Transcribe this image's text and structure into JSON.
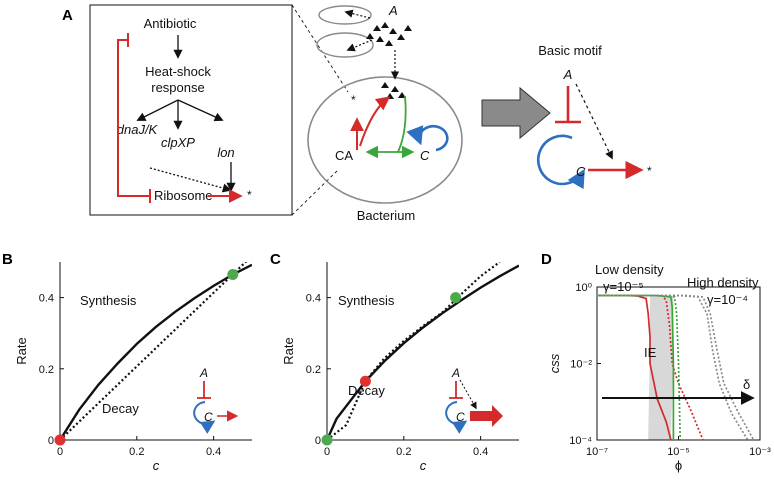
{
  "panels": {
    "A": {
      "letter": "A",
      "pathway": {
        "antibiotic": "Antibiotic",
        "hsr_line1": "Heat-shock",
        "hsr_line2": "response",
        "dnaJK": "dnaJ/K",
        "clpXP": "clpXP",
        "lon": "lon",
        "ribosome": "Ribosome",
        "star": "*"
      },
      "cell": {
        "A": "A",
        "CA": "CA",
        "C": "C",
        "star": "*",
        "caption": "Bacterium"
      },
      "motif": {
        "title": "Basic motif",
        "A": "A",
        "C": "C",
        "star": "*"
      }
    },
    "B": {
      "letter": "B",
      "synthesis": "Synthesis",
      "decay": "Decay",
      "A": "A",
      "C": "C"
    },
    "C": {
      "letter": "C",
      "synthesis": "Synthesis",
      "decay": "Decay",
      "A": "A",
      "C": "C"
    },
    "D": {
      "letter": "D",
      "low_density": "Low density",
      "high_density": "High density",
      "gamma_low": "γ=10⁻⁵",
      "gamma_high": "γ=10⁻⁴",
      "ie": "IE",
      "delta": "δ"
    }
  },
  "colors": {
    "red": "#d42a2a",
    "green": "#3aa63a",
    "blue": "#2f6fc0",
    "grey": "#8a8a8a",
    "point_red": "#e03030",
    "point_green": "#4caa4c",
    "ie_fill": "#d8d8d8"
  },
  "chart_data": [
    {
      "panel": "B",
      "type": "line",
      "xlabel": "c",
      "ylabel": "Rate",
      "xlim": [
        0,
        0.5
      ],
      "ylim": [
        0,
        0.5
      ],
      "xticks": [
        "0",
        "0.2",
        "0.4"
      ],
      "yticks": [
        "0",
        "0.2",
        "0.4"
      ],
      "series": [
        {
          "name": "Synthesis",
          "style": "solid",
          "x": [
            0,
            0.05,
            0.1,
            0.15,
            0.2,
            0.25,
            0.3,
            0.35,
            0.4,
            0.45,
            0.5
          ],
          "y": [
            0,
            0.085,
            0.155,
            0.215,
            0.27,
            0.318,
            0.36,
            0.398,
            0.433,
            0.465,
            0.492
          ]
        },
        {
          "name": "Decay",
          "style": "dotted",
          "x": [
            0,
            0.5
          ],
          "y": [
            0,
            0.517
          ]
        }
      ],
      "points": [
        {
          "x": 0,
          "y": 0,
          "color": "red"
        },
        {
          "x": 0.45,
          "y": 0.465,
          "color": "green"
        }
      ]
    },
    {
      "panel": "C",
      "type": "line",
      "xlabel": "c",
      "ylabel": "Rate",
      "xlim": [
        0,
        0.5
      ],
      "ylim": [
        0,
        0.5
      ],
      "xticks": [
        "0",
        "0.2",
        "0.4"
      ],
      "yticks": [
        "0",
        "0.2",
        "0.4"
      ],
      "series": [
        {
          "name": "Synthesis",
          "style": "solid",
          "x": [
            0,
            0.025,
            0.05,
            0.1,
            0.15,
            0.2,
            0.25,
            0.3,
            0.35,
            0.4,
            0.45,
            0.5
          ],
          "y": [
            0,
            0.06,
            0.095,
            0.165,
            0.222,
            0.272,
            0.316,
            0.356,
            0.393,
            0.428,
            0.46,
            0.49
          ]
        },
        {
          "name": "Decay",
          "style": "dotted",
          "x": [
            0,
            0.05,
            0.1,
            0.15,
            0.2,
            0.25,
            0.3,
            0.35,
            0.4,
            0.45
          ],
          "y": [
            0,
            0.042,
            0.166,
            0.23,
            0.278,
            0.32,
            0.358,
            0.41,
            0.46,
            0.5
          ]
        }
      ],
      "points": [
        {
          "x": 0,
          "y": 0,
          "color": "green"
        },
        {
          "x": 0.1,
          "y": 0.165,
          "color": "red"
        },
        {
          "x": 0.335,
          "y": 0.4,
          "color": "green"
        }
      ]
    },
    {
      "panel": "D",
      "type": "line",
      "xlabel": "ϕ",
      "ylabel": "css",
      "xscale": "log",
      "yscale": "log",
      "xlim": [
        1e-07,
        0.001
      ],
      "ylim": [
        0.0001,
        1
      ],
      "xticks": [
        "10⁻⁷",
        "10⁻⁵",
        "10⁻³"
      ],
      "yticks": [
        "10⁰",
        "10⁻²",
        "10⁻⁴"
      ],
      "series": [
        {
          "style": "solid",
          "color": "red",
          "x": [
            1e-07,
            5e-07,
            1e-06,
            1.6e-06,
            1.8e-06,
            2e-06,
            2e-06,
            3e-06,
            5e-06,
            6.5e-06
          ],
          "y": [
            0.6,
            0.6,
            0.58,
            0.5,
            0.2,
            0.05,
            0.01,
            0.0012,
            0.0003,
            0.0001
          ]
        },
        {
          "style": "dotted",
          "color": "red",
          "x": [
            1e-07,
            2e-06,
            4e-06,
            5e-06,
            6e-06,
            7e-06,
            1e-05,
            2e-05,
            4e-05
          ],
          "y": [
            0.6,
            0.6,
            0.58,
            0.45,
            0.1,
            0.01,
            0.003,
            0.0006,
            0.0001
          ]
        },
        {
          "style": "solid",
          "color": "green",
          "x": [
            1e-07,
            3e-06,
            6.5e-06,
            7e-06,
            7.5e-06,
            7.5e-06
          ],
          "y": [
            0.6,
            0.6,
            0.55,
            0.3,
            0.01,
            0.0001
          ]
        },
        {
          "style": "dotted",
          "color": "green",
          "x": [
            1e-07,
            5e-06,
            8e-06,
            9e-06,
            1e-05,
            1.05e-05,
            1.1e-05
          ],
          "y": [
            0.6,
            0.6,
            0.55,
            0.2,
            0.01,
            0.001,
            0.0001
          ]
        },
        {
          "style": "dotted",
          "color": "grey",
          "x": [
            1e-07,
            1e-05,
            3e-05,
            5e-05,
            7e-05,
            0.0001,
            0.0002,
            0.0005
          ],
          "y": [
            0.6,
            0.6,
            0.55,
            0.2,
            0.02,
            0.003,
            0.0005,
            0.0001
          ]
        },
        {
          "style": "dotted",
          "color": "grey",
          "x": [
            1e-07,
            1.5e-05,
            4e-05,
            6e-05,
            9e-05,
            0.00013,
            0.0003,
            0.0007
          ],
          "y": [
            0.6,
            0.6,
            0.55,
            0.2,
            0.02,
            0.003,
            0.0005,
            0.0001
          ]
        }
      ],
      "shaded_region": {
        "label": "IE",
        "x_left": [
          2e-06,
          1.8e-06
        ],
        "x_right": [
          7.5e-06,
          6.5e-06
        ]
      }
    }
  ]
}
